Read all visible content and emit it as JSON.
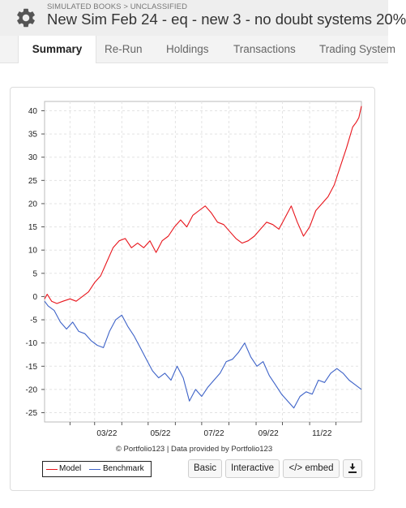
{
  "header": {
    "breadcrumb": "SIMULATED BOOKS > UNCLASSIFIED",
    "title": "New Sim Feb 24 - eq - new 3 - no doubt systems 20%"
  },
  "tabs": [
    {
      "label": "Summary",
      "active": true
    },
    {
      "label": "Re-Run",
      "active": false
    },
    {
      "label": "Holdings",
      "active": false
    },
    {
      "label": "Transactions",
      "active": false
    },
    {
      "label": "Trading System",
      "active": false
    }
  ],
  "chart_data": {
    "type": "line",
    "ylim": [
      -27,
      42
    ],
    "yticks": [
      -25,
      -20,
      -15,
      -10,
      -5,
      0,
      5,
      10,
      15,
      20,
      25,
      30,
      35,
      40
    ],
    "xlim": [
      "2022-01-03",
      "2022-12-30"
    ],
    "xtick_labels": [
      "03/22",
      "05/22",
      "07/22",
      "09/22",
      "11/22"
    ],
    "grid": true,
    "legend_position": "bottom-left",
    "series": [
      {
        "name": "Model",
        "color": "#e8141b",
        "points": [
          [
            "2022-01-03",
            -0.5
          ],
          [
            "2022-01-06",
            0.5
          ],
          [
            "2022-01-11",
            -1
          ],
          [
            "2022-01-17",
            -1.5
          ],
          [
            "2022-01-24",
            -1
          ],
          [
            "2022-02-01",
            -0.5
          ],
          [
            "2022-02-08",
            -1
          ],
          [
            "2022-02-15",
            0
          ],
          [
            "2022-02-22",
            1
          ],
          [
            "2022-03-01",
            3
          ],
          [
            "2022-03-08",
            4.5
          ],
          [
            "2022-03-15",
            7.5
          ],
          [
            "2022-03-22",
            10.5
          ],
          [
            "2022-03-29",
            12
          ],
          [
            "2022-04-05",
            12.5
          ],
          [
            "2022-04-12",
            10.5
          ],
          [
            "2022-04-19",
            11.5
          ],
          [
            "2022-04-26",
            10.5
          ],
          [
            "2022-05-03",
            12
          ],
          [
            "2022-05-10",
            9.5
          ],
          [
            "2022-05-17",
            12
          ],
          [
            "2022-05-24",
            13
          ],
          [
            "2022-05-31",
            15
          ],
          [
            "2022-06-07",
            16.5
          ],
          [
            "2022-06-14",
            15
          ],
          [
            "2022-06-21",
            17.5
          ],
          [
            "2022-06-28",
            18.5
          ],
          [
            "2022-07-05",
            19.5
          ],
          [
            "2022-07-12",
            18
          ],
          [
            "2022-07-19",
            16
          ],
          [
            "2022-07-26",
            15.5
          ],
          [
            "2022-08-02",
            14
          ],
          [
            "2022-08-09",
            12.5
          ],
          [
            "2022-08-16",
            11.5
          ],
          [
            "2022-08-23",
            12
          ],
          [
            "2022-08-30",
            13
          ],
          [
            "2022-09-06",
            14.5
          ],
          [
            "2022-09-13",
            16
          ],
          [
            "2022-09-20",
            15.5
          ],
          [
            "2022-09-27",
            14.5
          ],
          [
            "2022-10-04",
            17
          ],
          [
            "2022-10-11",
            19.5
          ],
          [
            "2022-10-18",
            16
          ],
          [
            "2022-10-25",
            13
          ],
          [
            "2022-11-01",
            15
          ],
          [
            "2022-11-08",
            18.5
          ],
          [
            "2022-11-15",
            20
          ],
          [
            "2022-11-22",
            21.5
          ],
          [
            "2022-11-29",
            24
          ],
          [
            "2022-12-06",
            28
          ],
          [
            "2022-12-13",
            32
          ],
          [
            "2022-12-20",
            36.5
          ],
          [
            "2022-12-24",
            37.5
          ],
          [
            "2022-12-27",
            38.5
          ],
          [
            "2022-12-30",
            41
          ]
        ]
      },
      {
        "name": "Benchmark",
        "color": "#3e63c8",
        "points": [
          [
            "2022-01-03",
            -1
          ],
          [
            "2022-01-07",
            -2
          ],
          [
            "2022-01-14",
            -3
          ],
          [
            "2022-01-21",
            -5.5
          ],
          [
            "2022-01-28",
            -7
          ],
          [
            "2022-02-04",
            -5.5
          ],
          [
            "2022-02-11",
            -7.5
          ],
          [
            "2022-02-18",
            -8
          ],
          [
            "2022-02-25",
            -9.5
          ],
          [
            "2022-03-04",
            -10.5
          ],
          [
            "2022-03-11",
            -11
          ],
          [
            "2022-03-18",
            -7.5
          ],
          [
            "2022-03-25",
            -5
          ],
          [
            "2022-04-01",
            -4
          ],
          [
            "2022-04-08",
            -6.5
          ],
          [
            "2022-04-15",
            -8.5
          ],
          [
            "2022-04-22",
            -11
          ],
          [
            "2022-04-29",
            -13.5
          ],
          [
            "2022-05-06",
            -16
          ],
          [
            "2022-05-13",
            -17.5
          ],
          [
            "2022-05-20",
            -16.5
          ],
          [
            "2022-05-27",
            -18
          ],
          [
            "2022-06-03",
            -15
          ],
          [
            "2022-06-10",
            -17.5
          ],
          [
            "2022-06-17",
            -22.5
          ],
          [
            "2022-06-24",
            -20
          ],
          [
            "2022-07-01",
            -21.5
          ],
          [
            "2022-07-08",
            -19.5
          ],
          [
            "2022-07-15",
            -18
          ],
          [
            "2022-07-22",
            -16.5
          ],
          [
            "2022-07-29",
            -14
          ],
          [
            "2022-08-05",
            -13.5
          ],
          [
            "2022-08-12",
            -12
          ],
          [
            "2022-08-19",
            -10
          ],
          [
            "2022-08-26",
            -13
          ],
          [
            "2022-09-02",
            -15
          ],
          [
            "2022-09-09",
            -14
          ],
          [
            "2022-09-16",
            -17
          ],
          [
            "2022-09-23",
            -19
          ],
          [
            "2022-09-30",
            -21
          ],
          [
            "2022-10-07",
            -22.5
          ],
          [
            "2022-10-14",
            -24
          ],
          [
            "2022-10-21",
            -21.5
          ],
          [
            "2022-10-28",
            -20.5
          ],
          [
            "2022-11-04",
            -21
          ],
          [
            "2022-11-11",
            -18
          ],
          [
            "2022-11-18",
            -18.5
          ],
          [
            "2022-11-25",
            -16.5
          ],
          [
            "2022-12-02",
            -15.5
          ],
          [
            "2022-12-09",
            -16.5
          ],
          [
            "2022-12-16",
            -18
          ],
          [
            "2022-12-23",
            -19
          ],
          [
            "2022-12-30",
            -20
          ]
        ]
      }
    ]
  },
  "credit": "© Portfolio123 | Data provided by Portfolio123",
  "buttons": {
    "basic": "Basic",
    "interactive": "Interactive",
    "embed": "</> embed"
  },
  "colors": {
    "tab_bar": "#f3f3f3",
    "header": "#eeeeee",
    "model": "#e8141b",
    "benchmark": "#3e63c8"
  }
}
